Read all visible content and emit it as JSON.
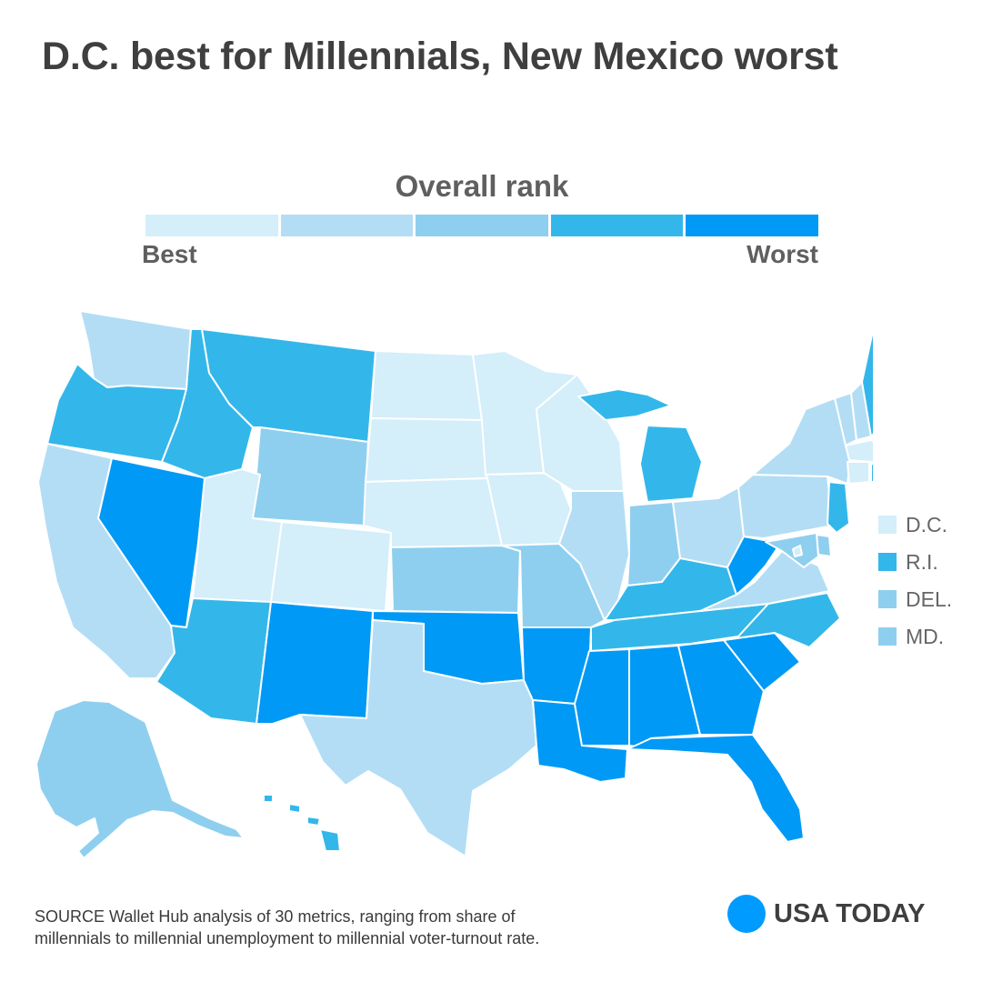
{
  "title": "D.C. best for Millennials, New Mexico worst",
  "legend": {
    "title": "Overall rank",
    "best_label": "Best",
    "worst_label": "Worst",
    "colors": [
      "#d4eefa",
      "#b3ddf5",
      "#8ecfef",
      "#33b7ea",
      "#0099f5"
    ]
  },
  "map_data": {
    "type": "choropleth",
    "scale": "overall rank, 5 bins from best to worst",
    "states": [
      {
        "state": "WA",
        "bin": 2
      },
      {
        "state": "OR",
        "bin": 4
      },
      {
        "state": "CA",
        "bin": 2
      },
      {
        "state": "NV",
        "bin": 5
      },
      {
        "state": "ID",
        "bin": 4
      },
      {
        "state": "MT",
        "bin": 4
      },
      {
        "state": "WY",
        "bin": 3
      },
      {
        "state": "UT",
        "bin": 1
      },
      {
        "state": "CO",
        "bin": 1
      },
      {
        "state": "AZ",
        "bin": 4
      },
      {
        "state": "NM",
        "bin": 5
      },
      {
        "state": "ND",
        "bin": 1
      },
      {
        "state": "SD",
        "bin": 1
      },
      {
        "state": "NE",
        "bin": 1
      },
      {
        "state": "KS",
        "bin": 3
      },
      {
        "state": "OK",
        "bin": 5
      },
      {
        "state": "TX",
        "bin": 2
      },
      {
        "state": "MN",
        "bin": 1
      },
      {
        "state": "IA",
        "bin": 1
      },
      {
        "state": "MO",
        "bin": 3
      },
      {
        "state": "AR",
        "bin": 5
      },
      {
        "state": "LA",
        "bin": 5
      },
      {
        "state": "WI",
        "bin": 1
      },
      {
        "state": "IL",
        "bin": 2
      },
      {
        "state": "MI",
        "bin": 4
      },
      {
        "state": "IN",
        "bin": 3
      },
      {
        "state": "OH",
        "bin": 2
      },
      {
        "state": "KY",
        "bin": 4
      },
      {
        "state": "TN",
        "bin": 4
      },
      {
        "state": "MS",
        "bin": 5
      },
      {
        "state": "AL",
        "bin": 5
      },
      {
        "state": "GA",
        "bin": 5
      },
      {
        "state": "FL",
        "bin": 5
      },
      {
        "state": "SC",
        "bin": 5
      },
      {
        "state": "NC",
        "bin": 4
      },
      {
        "state": "VA",
        "bin": 2
      },
      {
        "state": "WV",
        "bin": 5
      },
      {
        "state": "PA",
        "bin": 2
      },
      {
        "state": "NY",
        "bin": 2
      },
      {
        "state": "VT",
        "bin": 2
      },
      {
        "state": "NH",
        "bin": 2
      },
      {
        "state": "ME",
        "bin": 4
      },
      {
        "state": "MA",
        "bin": 1
      },
      {
        "state": "CT",
        "bin": 1
      },
      {
        "state": "NJ",
        "bin": 4
      },
      {
        "state": "AK",
        "bin": 3
      },
      {
        "state": "HI",
        "bin": 4
      }
    ]
  },
  "small_states_key": [
    {
      "label": "D.C.",
      "bin": 1
    },
    {
      "label": "R.I.",
      "bin": 4
    },
    {
      "label": "DEL.",
      "bin": 3
    },
    {
      "label": "MD.",
      "bin": 3
    }
  ],
  "source_line1": "SOURCE Wallet Hub analysis of 30 metrics, ranging from share of",
  "source_line2": "millennials to millennial unemployment to millennial voter-turnout rate.",
  "brand": {
    "name": "USA TODAY",
    "color": "#009bff"
  }
}
